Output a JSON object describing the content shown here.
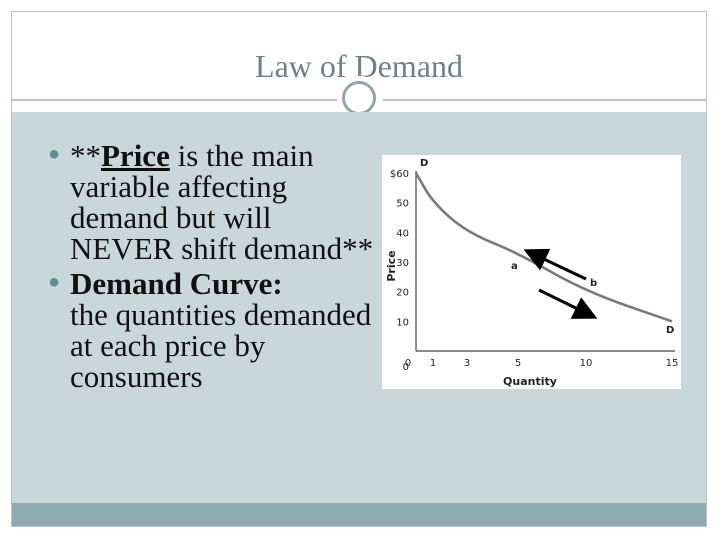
{
  "slide": {
    "title": "Law of Demand",
    "bullet1": {
      "prefix": "**",
      "emphasis": "Price",
      "text": " is the main variable affecting demand but will NEVER shift demand**"
    },
    "bullet2": {
      "heading": "Demand Curve:",
      "text": "the quantities demanded at each price by consumers"
    }
  },
  "chart_data": {
    "type": "line",
    "title": "",
    "xlabel": "Quantity",
    "ylabel": "Price",
    "x_ticks": [
      "0",
      "1",
      "3",
      "5",
      "10",
      "15"
    ],
    "y_ticks": [
      "$60",
      "50",
      "40",
      "30",
      "20",
      "10",
      "0"
    ],
    "series": [
      {
        "x": [
          0,
          1,
          3,
          5,
          10,
          15
        ],
        "y": [
          60,
          50,
          40,
          33,
          20,
          10
        ]
      }
    ],
    "annotations": [
      {
        "label": "D",
        "x": 0,
        "y": 60
      },
      {
        "label": "D",
        "x": 15,
        "y": 10
      },
      {
        "label": "a",
        "x": 5,
        "y": 33
      },
      {
        "label": "b",
        "x": 10,
        "y": 20
      }
    ],
    "colors": {
      "curve": "#7a7a7a",
      "arrow": "#000000"
    }
  }
}
